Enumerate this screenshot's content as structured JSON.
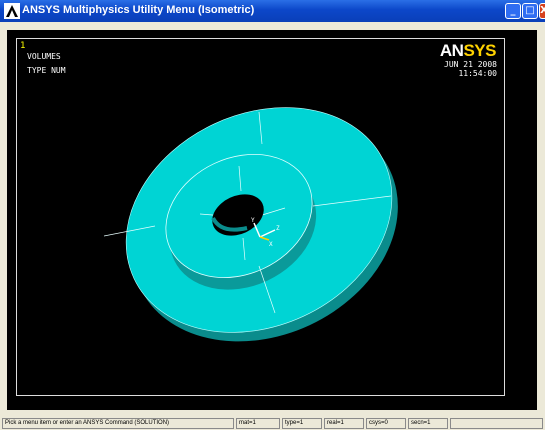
{
  "window": {
    "title": "ANSYS Multiphysics Utility Menu (Isometric)",
    "minimize_glyph": "_",
    "maximize_glyph": "□",
    "close_glyph": "X"
  },
  "graphics": {
    "window_number": "1",
    "plot_label": "VOLUMES",
    "numbering_label": "TYPE NUM",
    "logo_part1": "AN",
    "logo_part2": "SYS",
    "date": "JUN 21 2008",
    "time": "11:54:00",
    "triad_y": "Y",
    "triad_z": "Z",
    "triad_x": "X",
    "model_color": "#00d4d4",
    "background_color": "#000000"
  },
  "statusbar": {
    "prompt": "Pick a menu item or enter an ANSYS Command (SOLUTION)",
    "mat": "mat=1",
    "type": "type=1",
    "real": "real=1",
    "csys": "csys=0",
    "secn": "secn=1"
  }
}
